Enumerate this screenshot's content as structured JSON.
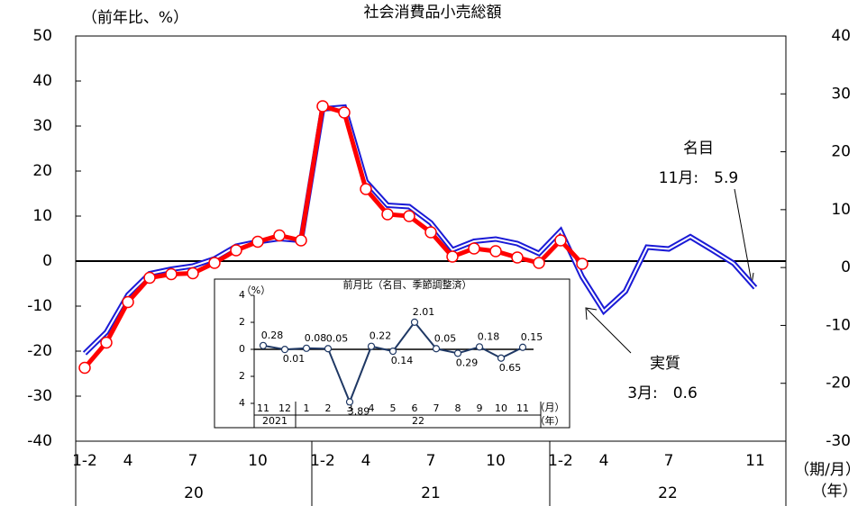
{
  "chart_data": [
    {
      "type": "line",
      "title": "社会消費品小売総額",
      "y_label": "（前年比、%）",
      "x_label": "（期/月）",
      "x_group_label": "（年）",
      "categories": [
        "1-2",
        null,
        "4",
        null,
        null,
        "7",
        null,
        null,
        "10",
        null,
        null,
        "1-2",
        null,
        "4",
        null,
        null,
        "7",
        null,
        null,
        "10",
        null,
        null,
        "1-2",
        null,
        "4",
        null,
        null,
        "7",
        null,
        null,
        null,
        "11"
      ],
      "groups": [
        "20",
        "21",
        "22"
      ],
      "ylim": [
        -40,
        50
      ],
      "yticks": [
        -40,
        -30,
        -20,
        -10,
        0,
        10,
        20,
        30,
        40,
        50
      ],
      "y2lim": [
        -30,
        40
      ],
      "y2ticks": [
        -30,
        -20,
        -10,
        0,
        10,
        20,
        30,
        40
      ],
      "series": [
        {
          "name": "名目",
          "note": "11月:　5.9",
          "color": "#1a1ad6",
          "style": "double",
          "values": [
            -20.5,
            -15.8,
            -7.5,
            -2.8,
            -1.8,
            -1.1,
            0.5,
            3.3,
            4.3,
            5.0,
            4.6,
            33.8,
            34.2,
            17.7,
            12.4,
            12.1,
            8.5,
            2.5,
            4.4,
            4.9,
            3.9,
            1.7,
            6.7,
            -3.5,
            -11.1,
            -6.7,
            3.1,
            2.7,
            5.4,
            2.5,
            -0.5,
            -5.9
          ]
        },
        {
          "name": "実質",
          "note": "3月:　0.6",
          "color": "#ff0000",
          "style": "markers",
          "values": [
            -23.7,
            -18.1,
            -9.1,
            -3.7,
            -2.9,
            -2.7,
            -0.4,
            2.4,
            4.3,
            5.7,
            4.6,
            34.4,
            33.0,
            16.0,
            10.4,
            10.0,
            6.4,
            1.0,
            2.8,
            2.2,
            0.8,
            -0.4,
            4.6,
            -0.6,
            null,
            null,
            null,
            null,
            null,
            null,
            null,
            null
          ]
        }
      ]
    },
    {
      "type": "line",
      "title": "前月比（名目、季節調整済）",
      "y_label": "（%）",
      "x_label": "（月）",
      "x_group_label": "（年）",
      "categories": [
        "11",
        "12",
        "1",
        "2",
        "3",
        "4",
        "5",
        "6",
        "7",
        "8",
        "9",
        "10",
        "11"
      ],
      "groups": [
        "2021",
        "22"
      ],
      "ylim": [
        -4,
        4
      ],
      "yticks": [
        {
          "value": -4,
          "label": "4"
        },
        {
          "value": -2,
          "label": "2"
        },
        0,
        2,
        4
      ],
      "color": "#1f3864",
      "values": [
        0.28,
        -0.01,
        0.08,
        0.05,
        -3.89,
        0.22,
        -0.14,
        2.01,
        0.05,
        -0.29,
        0.18,
        -0.65,
        0.15
      ],
      "value_labels": [
        "0.28",
        "0.01",
        "0.08",
        "0.05",
        "3.89",
        "0.22",
        "0.14",
        "2.01",
        "0.05",
        "0.29",
        "0.18",
        "0.65",
        "0.15"
      ]
    }
  ]
}
